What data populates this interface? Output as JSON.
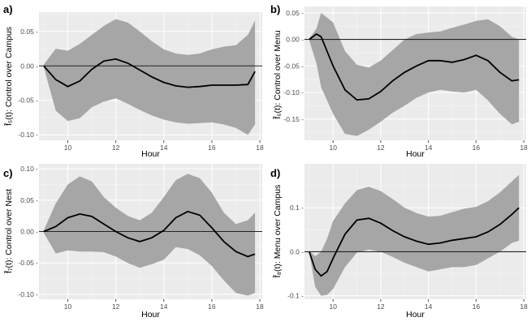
{
  "chart_data": [
    {
      "type": "line",
      "panel_label": "a)",
      "xlabel": "Hour",
      "ylabel": "f̂₅(t): Control over Campus",
      "xlim": [
        8.8,
        18.1
      ],
      "ylim": [
        -0.108,
        0.078
      ],
      "xticks": [
        10,
        12,
        14,
        16,
        18
      ],
      "xtick_labels": [
        "10",
        "12",
        "14",
        "16",
        "18"
      ],
      "yticks": [
        -0.1,
        -0.05,
        0.0,
        0.05
      ],
      "ytick_labels": [
        "-0.10 -",
        "-0.05 -",
        "0.00 -",
        "0.05 -"
      ],
      "zero_line": 0,
      "series": [
        {
          "name": "estimate",
          "x": [
            9.0,
            9.5,
            10.0,
            10.5,
            11.0,
            11.5,
            12.0,
            12.5,
            13.0,
            13.5,
            14.0,
            14.5,
            15.0,
            15.5,
            16.0,
            16.5,
            17.0,
            17.5,
            17.8
          ],
          "y": [
            0.0,
            -0.02,
            -0.03,
            -0.022,
            -0.005,
            0.007,
            0.01,
            0.004,
            -0.006,
            -0.016,
            -0.024,
            -0.029,
            -0.031,
            -0.03,
            -0.028,
            -0.028,
            -0.028,
            -0.027,
            -0.008
          ]
        }
      ],
      "band": {
        "name": "confidence band",
        "x": [
          9.0,
          9.5,
          10.0,
          10.5,
          11.0,
          11.5,
          12.0,
          12.5,
          13.0,
          13.5,
          14.0,
          14.5,
          15.0,
          15.5,
          16.0,
          16.5,
          17.0,
          17.5,
          17.8
        ],
        "upper": [
          0.002,
          0.025,
          0.022,
          0.032,
          0.045,
          0.058,
          0.068,
          0.063,
          0.05,
          0.036,
          0.024,
          0.018,
          0.016,
          0.018,
          0.024,
          0.028,
          0.03,
          0.045,
          0.066
        ],
        "lower": [
          -0.002,
          -0.065,
          -0.08,
          -0.076,
          -0.06,
          -0.052,
          -0.047,
          -0.055,
          -0.064,
          -0.072,
          -0.078,
          -0.082,
          -0.084,
          -0.083,
          -0.082,
          -0.085,
          -0.09,
          -0.1,
          -0.085
        ]
      }
    },
    {
      "type": "line",
      "panel_label": "b)",
      "xlabel": "Hour",
      "ylabel": "f̂₆(t): Control over Menu",
      "xlim": [
        8.8,
        18.1
      ],
      "ylim": [
        -0.19,
        0.062
      ],
      "xticks": [
        10,
        12,
        14,
        16,
        18
      ],
      "xtick_labels": [
        "10",
        "12",
        "14",
        "16",
        "18"
      ],
      "yticks": [
        -0.15,
        -0.1,
        -0.05,
        0.0,
        0.05
      ],
      "ytick_labels": [
        "-0.15 -",
        "-0.10 -",
        "-0.05 -",
        "0.00 -",
        "0.05 -"
      ],
      "zero_line": 0,
      "series": [
        {
          "name": "estimate",
          "x": [
            9.0,
            9.3,
            9.5,
            10.0,
            10.5,
            11.0,
            11.5,
            12.0,
            12.5,
            13.0,
            13.5,
            14.0,
            14.5,
            15.0,
            15.5,
            16.0,
            16.5,
            17.0,
            17.5,
            17.8
          ],
          "y": [
            0.0,
            0.01,
            0.005,
            -0.05,
            -0.095,
            -0.114,
            -0.112,
            -0.098,
            -0.078,
            -0.062,
            -0.05,
            -0.04,
            -0.04,
            -0.043,
            -0.038,
            -0.03,
            -0.04,
            -0.062,
            -0.078,
            -0.076
          ]
        }
      ],
      "band": {
        "name": "confidence band",
        "x": [
          9.0,
          9.3,
          9.5,
          10.0,
          10.5,
          11.0,
          11.5,
          12.0,
          12.5,
          13.0,
          13.5,
          14.0,
          14.5,
          15.0,
          15.5,
          16.0,
          16.5,
          17.0,
          17.5,
          17.8
        ],
        "upper": [
          0.002,
          0.02,
          0.05,
          0.032,
          -0.022,
          -0.048,
          -0.053,
          -0.04,
          -0.02,
          0.0,
          0.01,
          0.013,
          0.015,
          0.022,
          0.028,
          0.035,
          0.038,
          0.025,
          0.005,
          0.0
        ],
        "lower": [
          -0.002,
          -0.045,
          -0.09,
          -0.14,
          -0.178,
          -0.182,
          -0.17,
          -0.155,
          -0.138,
          -0.125,
          -0.11,
          -0.1,
          -0.095,
          -0.098,
          -0.1,
          -0.095,
          -0.115,
          -0.14,
          -0.16,
          -0.155
        ]
      }
    },
    {
      "type": "line",
      "panel_label": "c)",
      "xlabel": "Hour",
      "ylabel": "f̂₇(t): Control over Nest",
      "xlim": [
        8.8,
        18.1
      ],
      "ylim": [
        -0.108,
        0.108
      ],
      "xticks": [
        10,
        12,
        14,
        16,
        18
      ],
      "xtick_labels": [
        "10",
        "12",
        "14",
        "16",
        "18"
      ],
      "yticks": [
        -0.1,
        -0.05,
        0.0,
        0.05,
        0.1
      ],
      "ytick_labels": [
        "-0.10 -",
        "-0.05 -",
        "0.00 -",
        "0.05 -",
        "0.10 -"
      ],
      "zero_line": 0,
      "series": [
        {
          "name": "estimate",
          "x": [
            9.0,
            9.5,
            10.0,
            10.5,
            11.0,
            11.5,
            12.0,
            12.5,
            13.0,
            13.5,
            14.0,
            14.5,
            15.0,
            15.5,
            16.0,
            16.5,
            17.0,
            17.5,
            17.8
          ],
          "y": [
            0.0,
            0.008,
            0.022,
            0.028,
            0.024,
            0.012,
            0.0,
            -0.01,
            -0.016,
            -0.01,
            0.002,
            0.022,
            0.032,
            0.026,
            0.006,
            -0.016,
            -0.032,
            -0.04,
            -0.036
          ]
        }
      ],
      "band": {
        "name": "confidence band",
        "x": [
          9.0,
          9.5,
          10.0,
          10.5,
          11.0,
          11.5,
          12.0,
          12.5,
          13.0,
          13.5,
          14.0,
          14.5,
          15.0,
          15.5,
          16.0,
          16.5,
          17.0,
          17.5,
          17.8
        ],
        "upper": [
          0.002,
          0.045,
          0.075,
          0.088,
          0.08,
          0.055,
          0.038,
          0.025,
          0.018,
          0.03,
          0.055,
          0.082,
          0.092,
          0.085,
          0.062,
          0.03,
          0.012,
          0.018,
          0.03
        ],
        "lower": [
          -0.002,
          -0.035,
          -0.03,
          -0.032,
          -0.032,
          -0.033,
          -0.04,
          -0.05,
          -0.058,
          -0.052,
          -0.045,
          -0.025,
          -0.028,
          -0.038,
          -0.055,
          -0.078,
          -0.098,
          -0.102,
          -0.098
        ]
      }
    },
    {
      "type": "line",
      "panel_label": "d)",
      "xlabel": "Hour",
      "ylabel": "f̂₈(t): Menu over Campus",
      "xlim": [
        8.8,
        18.1
      ],
      "ylim": [
        -0.108,
        0.2
      ],
      "xticks": [
        10,
        12,
        14,
        16,
        18
      ],
      "xtick_labels": [
        "10",
        "12",
        "14",
        "16",
        "18"
      ],
      "yticks": [
        -0.1,
        0.0,
        0.1
      ],
      "ytick_labels": [
        "-0.1 -",
        "0.0 -",
        "0.1 -"
      ],
      "zero_line": 0,
      "series": [
        {
          "name": "estimate",
          "x": [
            9.0,
            9.25,
            9.5,
            9.75,
            10.0,
            10.5,
            11.0,
            11.5,
            12.0,
            12.5,
            13.0,
            13.5,
            14.0,
            14.5,
            15.0,
            15.5,
            16.0,
            16.5,
            17.0,
            17.5,
            17.8
          ],
          "y": [
            0.0,
            -0.04,
            -0.055,
            -0.045,
            -0.015,
            0.04,
            0.072,
            0.076,
            0.065,
            0.048,
            0.034,
            0.024,
            0.017,
            0.02,
            0.026,
            0.03,
            0.034,
            0.045,
            0.062,
            0.085,
            0.1
          ]
        }
      ],
      "band": {
        "name": "confidence band",
        "x": [
          9.0,
          9.25,
          9.5,
          9.75,
          10.0,
          10.5,
          11.0,
          11.5,
          12.0,
          12.5,
          13.0,
          13.5,
          14.0,
          14.5,
          15.0,
          15.5,
          16.0,
          16.5,
          17.0,
          17.5,
          17.8
        ],
        "upper": [
          0.002,
          -0.01,
          0.0,
          0.03,
          0.07,
          0.11,
          0.14,
          0.148,
          0.138,
          0.12,
          0.1,
          0.088,
          0.08,
          0.082,
          0.09,
          0.098,
          0.102,
          0.115,
          0.135,
          0.16,
          0.175
        ],
        "lower": [
          -0.002,
          -0.08,
          -0.1,
          -0.098,
          -0.085,
          -0.035,
          -0.002,
          0.005,
          0.0,
          -0.012,
          -0.025,
          -0.035,
          -0.045,
          -0.04,
          -0.035,
          -0.035,
          -0.03,
          -0.015,
          0.0,
          0.02,
          0.025
        ]
      }
    }
  ]
}
